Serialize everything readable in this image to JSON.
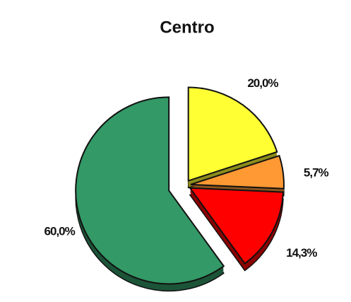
{
  "chart_data": {
    "type": "pie",
    "title": "Centro",
    "categories": [
      null,
      null,
      null,
      null
    ],
    "values": [
      20,
      5.7,
      14.3,
      60
    ],
    "value_labels": [
      "20,0%",
      "5,7%",
      "14,3%",
      "60,0%"
    ],
    "colors": [
      "#ffff33",
      "#ff9933",
      "#ff0000",
      "#339966"
    ]
  }
}
